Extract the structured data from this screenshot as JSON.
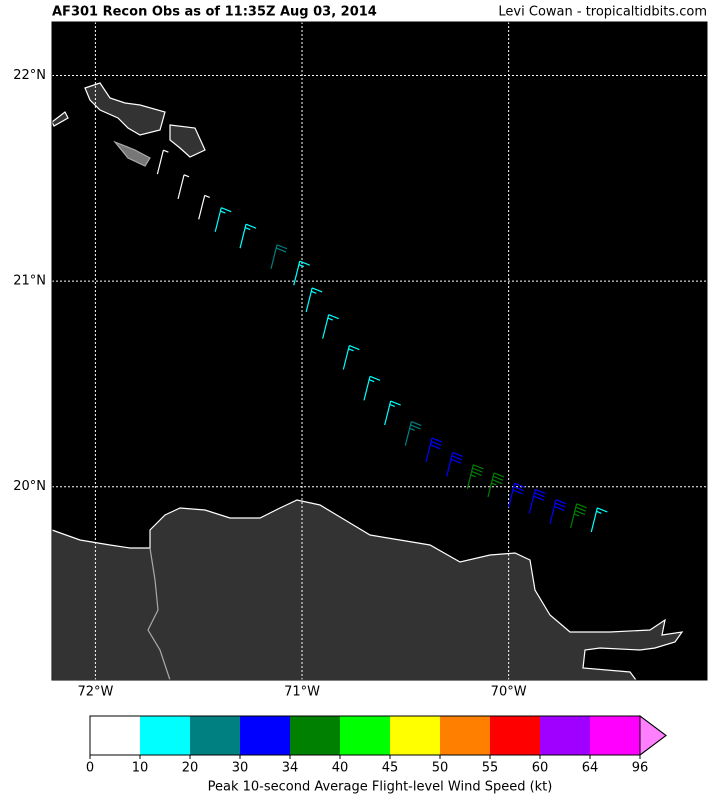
{
  "header": {
    "title": "AF301 Recon Obs as of 11:35Z Aug 03, 2014",
    "credit": "Levi Cowan - tropicaltidbits.com"
  },
  "map": {
    "lon_range": [
      -72.21,
      -69.04
    ],
    "lat_range": [
      19.06,
      22.26
    ],
    "lon_ticks": [
      {
        "value": -72,
        "label": "72°W"
      },
      {
        "value": -71,
        "label": "71°W"
      },
      {
        "value": -70,
        "label": "70°W"
      }
    ],
    "lat_ticks": [
      {
        "value": 22,
        "label": "22°N"
      },
      {
        "value": 21,
        "label": "21°N"
      },
      {
        "value": 20,
        "label": "20°N"
      }
    ],
    "track": [
      {
        "lon": -71.7,
        "lat": 21.52,
        "wind": 5
      },
      {
        "lon": -71.6,
        "lat": 21.4,
        "wind": 8
      },
      {
        "lon": -71.5,
        "lat": 21.3,
        "wind": 9
      },
      {
        "lon": -71.42,
        "lat": 21.24,
        "wind": 15
      },
      {
        "lon": -71.3,
        "lat": 21.16,
        "wind": 15
      },
      {
        "lon": -71.15,
        "lat": 21.06,
        "wind": 22
      },
      {
        "lon": -71.04,
        "lat": 20.98,
        "wind": 17
      },
      {
        "lon": -70.98,
        "lat": 20.85,
        "wind": 18
      },
      {
        "lon": -70.9,
        "lat": 20.72,
        "wind": 18
      },
      {
        "lon": -70.8,
        "lat": 20.57,
        "wind": 19
      },
      {
        "lon": -70.7,
        "lat": 20.42,
        "wind": 18
      },
      {
        "lon": -70.6,
        "lat": 20.3,
        "wind": 19
      },
      {
        "lon": -70.5,
        "lat": 20.2,
        "wind": 25
      },
      {
        "lon": -70.4,
        "lat": 20.12,
        "wind": 32
      },
      {
        "lon": -70.3,
        "lat": 20.05,
        "wind": 30
      },
      {
        "lon": -70.2,
        "lat": 19.99,
        "wind": 36
      },
      {
        "lon": -70.1,
        "lat": 19.95,
        "wind": 38
      },
      {
        "lon": -70.0,
        "lat": 19.9,
        "wind": 32
      },
      {
        "lon": -69.9,
        "lat": 19.87,
        "wind": 31
      },
      {
        "lon": -69.8,
        "lat": 19.82,
        "wind": 31
      },
      {
        "lon": -69.7,
        "lat": 19.8,
        "wind": 36
      },
      {
        "lon": -69.6,
        "lat": 19.78,
        "wind": 16
      }
    ]
  },
  "colorbar": {
    "bounds": [
      0,
      10,
      20,
      30,
      34,
      40,
      45,
      50,
      55,
      60,
      64,
      96
    ],
    "colors": [
      "#ffffff",
      "#00ffff",
      "#008080",
      "#0000ff",
      "#008000",
      "#00ff00",
      "#ffff00",
      "#ff8000",
      "#ff0000",
      "#a000ff",
      "#ff00ff"
    ],
    "extend_color": "#ff80ff",
    "label": "Peak 10-second Average Flight-level Wind Speed (kt)"
  }
}
